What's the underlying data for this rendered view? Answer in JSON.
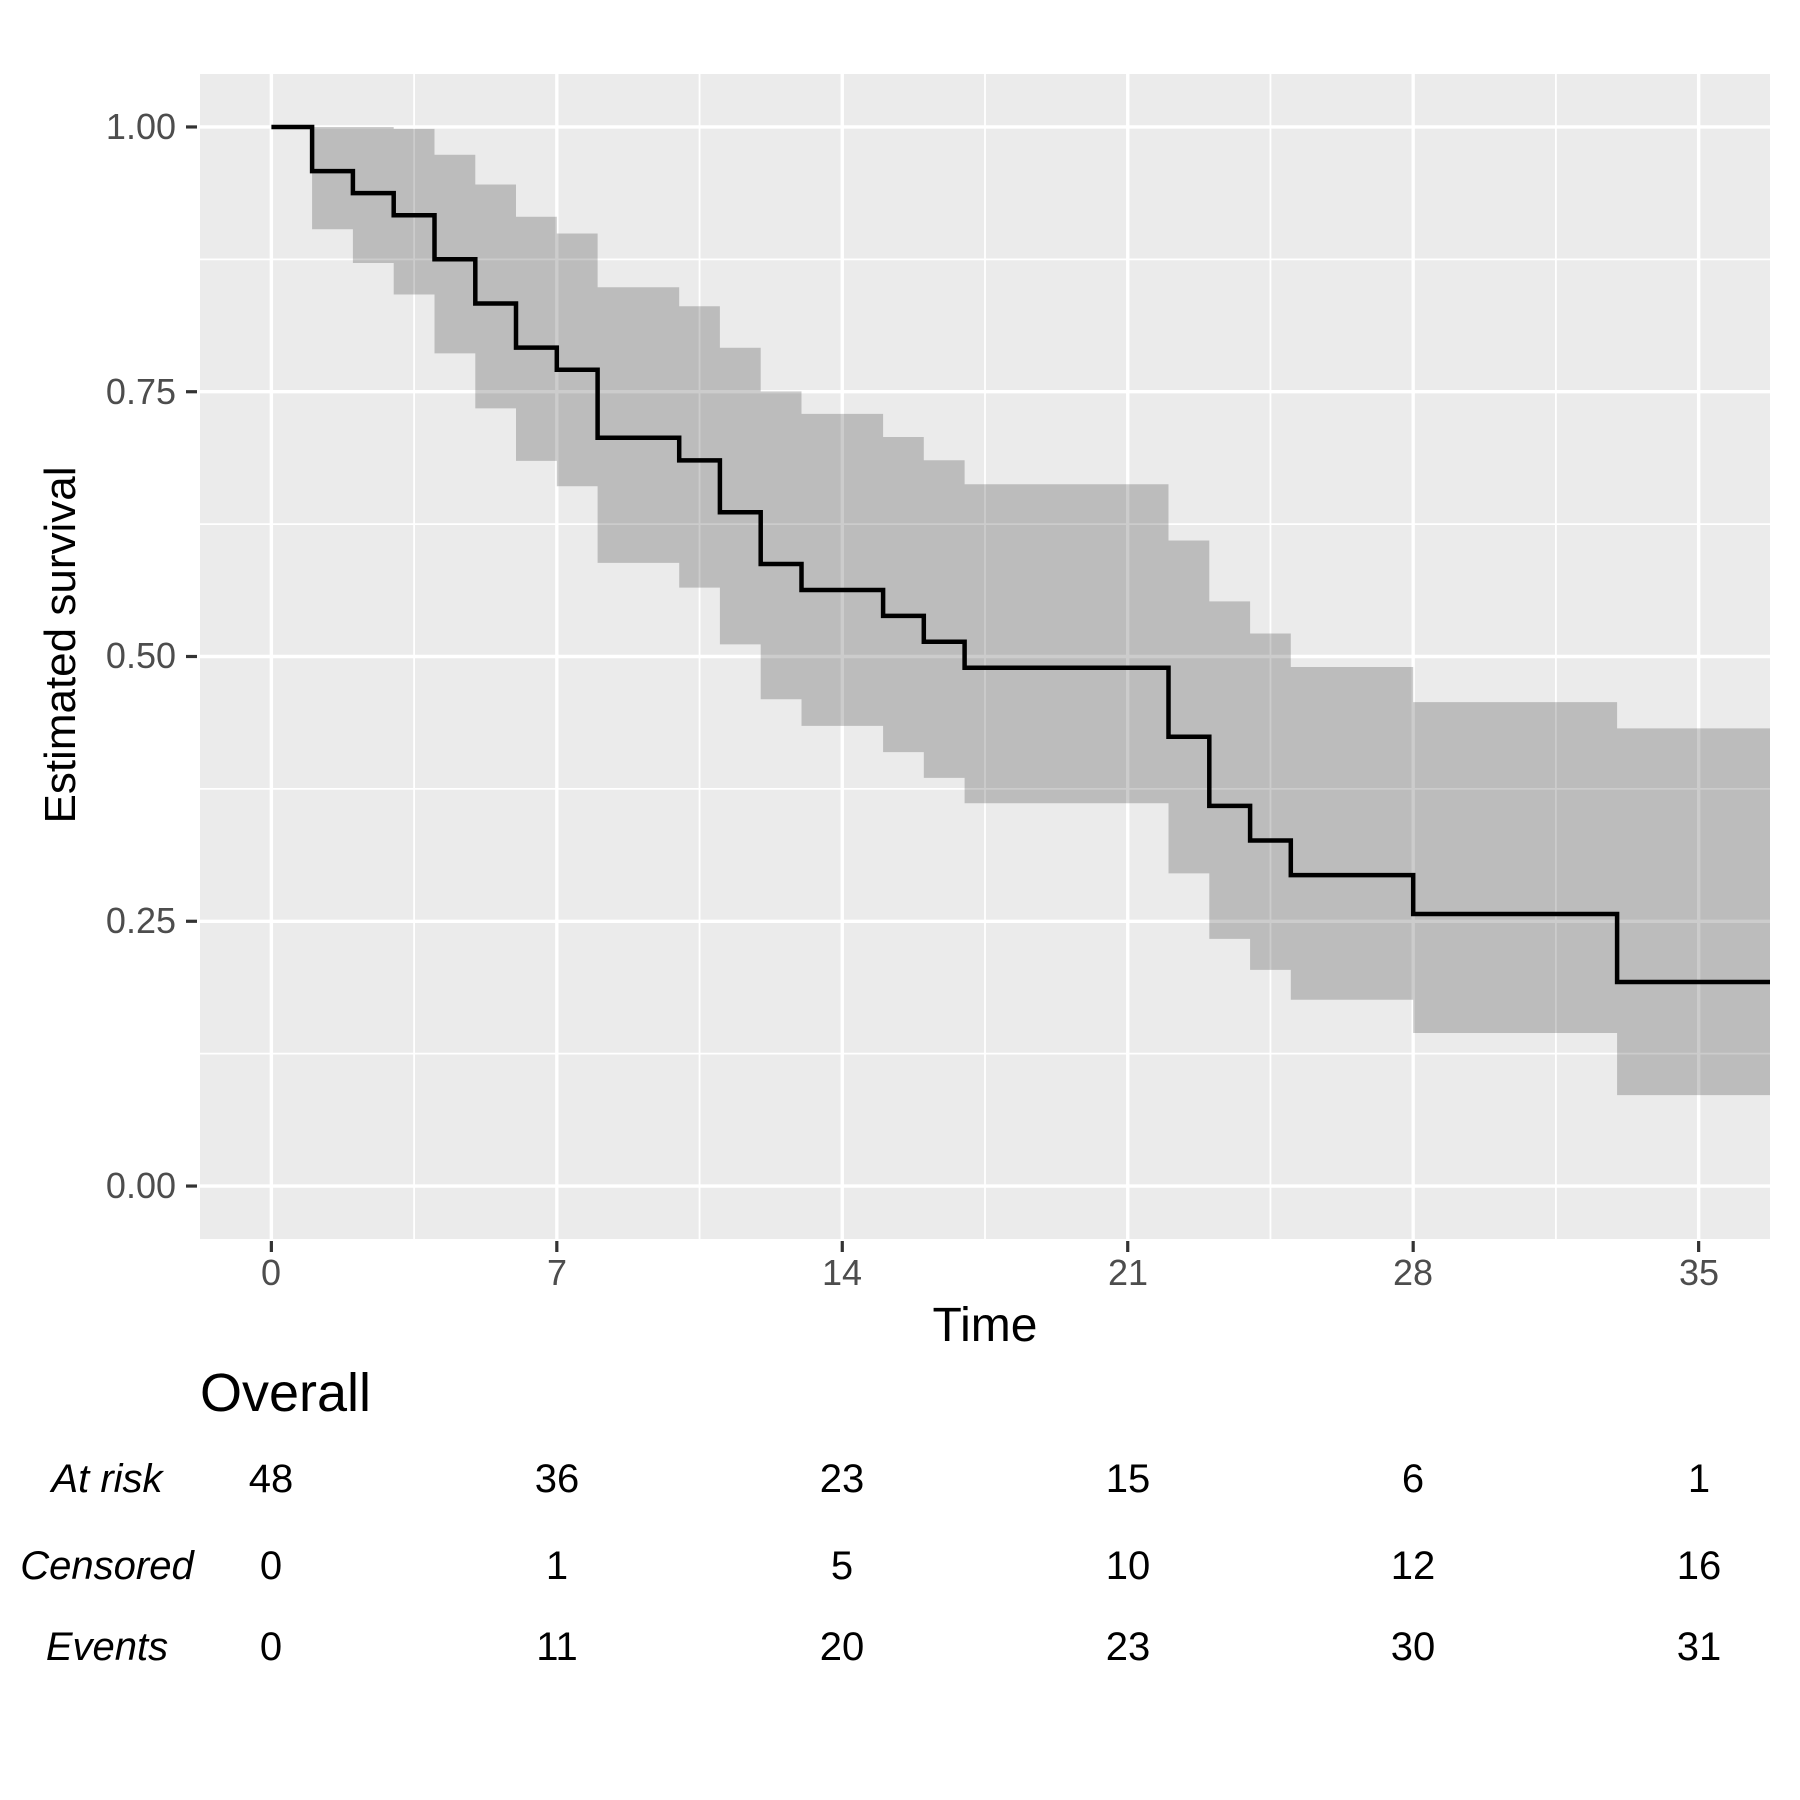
{
  "chart_data": {
    "type": "line",
    "subtype": "kaplan-meier-step-with-confidence-band",
    "title": "",
    "xlabel": "Time",
    "ylabel": "Estimated survival",
    "grid": "on",
    "legend": "none",
    "x_domain": [
      -1.75,
      36.75
    ],
    "y_domain": [
      -0.05,
      1.05
    ],
    "x_tick_values": [
      0,
      7,
      14,
      21,
      28,
      35
    ],
    "x_tick_labels": [
      "0",
      "7",
      "14",
      "21",
      "28",
      "35"
    ],
    "y_tick_values": [
      1.0,
      0.75,
      0.5,
      0.25,
      0.0
    ],
    "y_tick_labels": [
      "1.00",
      "0.75",
      "0.50",
      "0.25",
      "0.00"
    ],
    "x_minor_gridlines": [
      3.5,
      10.5,
      17.5,
      24.5,
      31.5
    ],
    "y_minor_gridlines": [
      0.125,
      0.375,
      0.625,
      0.875
    ],
    "km": {
      "start": {
        "time": 0,
        "surv": 1.0
      },
      "end_time": 36.75,
      "steps": [
        {
          "t": 1,
          "s": 0.9583,
          "lo": 0.9034,
          "up": 1.0
        },
        {
          "t": 2,
          "s": 0.9375,
          "lo": 0.8715,
          "up": 1.0
        },
        {
          "t": 3,
          "s": 0.9167,
          "lo": 0.8418,
          "up": 0.9982
        },
        {
          "t": 4,
          "s": 0.875,
          "lo": 0.7862,
          "up": 0.9738
        },
        {
          "t": 5,
          "s": 0.8333,
          "lo": 0.7343,
          "up": 0.9457
        },
        {
          "t": 6,
          "s": 0.7917,
          "lo": 0.6847,
          "up": 0.9153
        },
        {
          "t": 7,
          "s": 0.7708,
          "lo": 0.6607,
          "up": 0.8994
        },
        {
          "t": 8,
          "s": 0.7066,
          "lo": 0.5884,
          "up": 0.8486
        },
        {
          "t": 10,
          "s": 0.6852,
          "lo": 0.5651,
          "up": 0.8308
        },
        {
          "t": 11,
          "s": 0.6362,
          "lo": 0.5114,
          "up": 0.7915
        },
        {
          "t": 12,
          "s": 0.5873,
          "lo": 0.4597,
          "up": 0.7503
        },
        {
          "t": 13,
          "s": 0.5628,
          "lo": 0.4345,
          "up": 0.7291
        },
        {
          "t": 15,
          "s": 0.5383,
          "lo": 0.4097,
          "up": 0.7073
        },
        {
          "t": 16,
          "s": 0.5139,
          "lo": 0.3854,
          "up": 0.6853
        },
        {
          "t": 17,
          "s": 0.4894,
          "lo": 0.3614,
          "up": 0.6627
        },
        {
          "t": 22,
          "s": 0.4242,
          "lo": 0.2952,
          "up": 0.6095
        },
        {
          "t": 23,
          "s": 0.3589,
          "lo": 0.2334,
          "up": 0.552
        },
        {
          "t": 24,
          "s": 0.3263,
          "lo": 0.2041,
          "up": 0.5217
        },
        {
          "t": 25,
          "s": 0.2936,
          "lo": 0.1759,
          "up": 0.4901
        },
        {
          "t": 28,
          "s": 0.2569,
          "lo": 0.1445,
          "up": 0.4569
        },
        {
          "t": 33,
          "s": 0.1927,
          "lo": 0.0859,
          "up": 0.4321
        }
      ]
    },
    "colors": {
      "panel_bg": "#EBEBEB",
      "gridline": "#FFFFFF",
      "band": "rgba(0,0,0,0.20)",
      "line": "#000000",
      "tick_mark": "#333333",
      "tick_text": "#4D4D4D"
    }
  },
  "risk_table": {
    "title": "Overall",
    "time_points": [
      0,
      7,
      14,
      21,
      28,
      35
    ],
    "rows": [
      {
        "label": "At risk",
        "values": [
          "48",
          "36",
          "23",
          "15",
          "6",
          "1"
        ]
      },
      {
        "label": "Censored",
        "values": [
          "0",
          "1",
          "5",
          "10",
          "12",
          "16"
        ]
      },
      {
        "label": "Events",
        "values": [
          "0",
          "11",
          "20",
          "23",
          "30",
          "31"
        ]
      }
    ]
  }
}
